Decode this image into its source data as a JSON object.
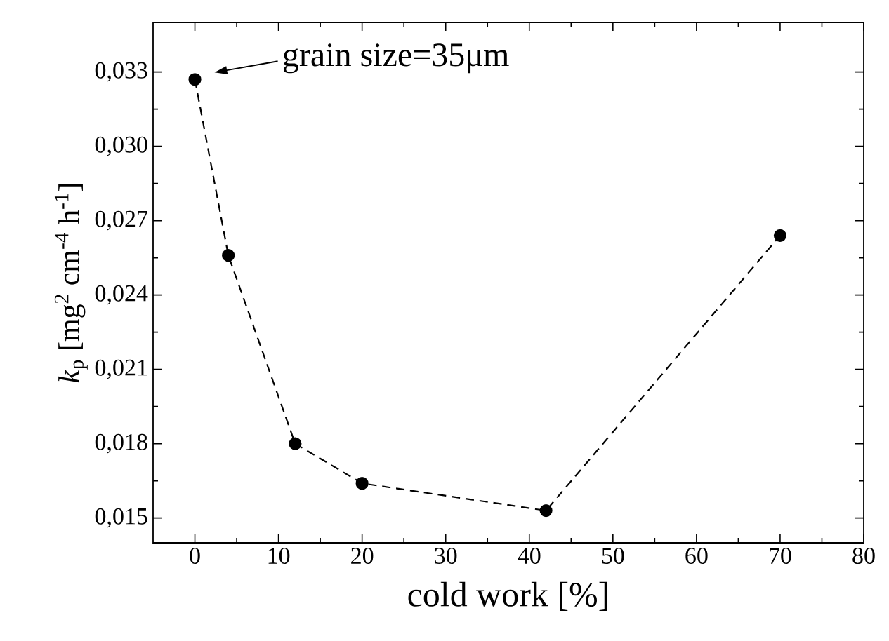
{
  "chart_data": {
    "type": "line",
    "xlabel": "cold work [%]",
    "ylabel": "*k*$_{p}$ [mg$^{2}$ cm$^{-4}$ h$^{-1}$]",
    "x": [
      0,
      4,
      12,
      20,
      42,
      70
    ],
    "series": [
      {
        "color": "#000000",
        "values": [
          0.0327,
          0.0256,
          0.018,
          0.0164,
          0.0153,
          0.0264
        ]
      }
    ],
    "marker": "circle",
    "line_style": "dashed",
    "xlim": [
      -5,
      80
    ],
    "ylim": [
      0.014,
      0.035
    ],
    "xticks": [
      0,
      10,
      20,
      30,
      40,
      50,
      60,
      70,
      80
    ],
    "yticks": [
      {
        "value": 0.015,
        "label": "0,015"
      },
      {
        "value": 0.018,
        "label": "0,018"
      },
      {
        "value": 0.021,
        "label": "0,021"
      },
      {
        "value": 0.024,
        "label": "0,024"
      },
      {
        "value": 0.027,
        "label": "0,027"
      },
      {
        "value": 0.03,
        "label": "0,030"
      },
      {
        "value": 0.033,
        "label": "0,033"
      }
    ],
    "annotations": [
      {
        "text": "grain size=35μm",
        "x": 0,
        "y": 0.0327
      }
    ]
  }
}
